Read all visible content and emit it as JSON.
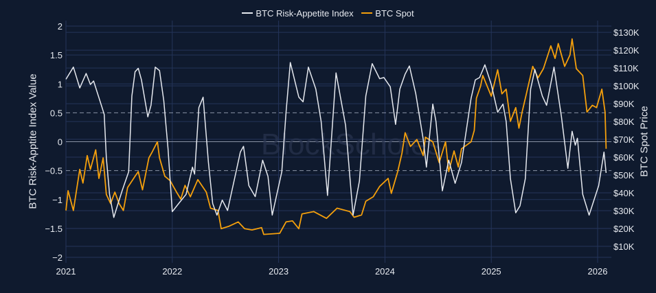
{
  "colors": {
    "background": "#0f1a2e",
    "grid": "#24345a",
    "index": "#e6e9ef",
    "spot": "#f5a00c",
    "zero": "#8a93a6",
    "watermark": "#2a3550"
  },
  "chart_data": {
    "type": "line",
    "title": "",
    "watermark": "BlockScholes",
    "legend_position": "top-center",
    "xlabel": "",
    "ylabel": "BTC Risk-Apptite Index Value",
    "y2label": "BTC Spot Price",
    "xlim": [
      2021.0,
      2026.13
    ],
    "ylim": [
      -2,
      2
    ],
    "y2lim": [
      3.85,
      133.5
    ],
    "x_ticks": [
      2021,
      2022,
      2023,
      2024,
      2025,
      2026
    ],
    "x_tick_labels": [
      "2021",
      "2022",
      "2023",
      "2024",
      "2025",
      "2026"
    ],
    "y_ticks": [
      2,
      1.5,
      1,
      0.5,
      0,
      -0.5,
      -1,
      -1.5,
      -2
    ],
    "y_tick_labels": [
      "2",
      "1.5",
      "1",
      "0.5",
      "0",
      "−0.5",
      "−1",
      "−1.5",
      "−2"
    ],
    "y2_ticks": [
      130,
      120,
      110,
      100,
      90,
      80,
      70,
      60,
      50,
      40,
      30,
      20,
      10
    ],
    "y2_tick_labels": [
      "$130K",
      "$120K",
      "$110K",
      "$100K",
      "$90K",
      "$80K",
      "$70K",
      "$60K",
      "$50K",
      "$40K",
      "$30K",
      "$20K",
      "$10K"
    ],
    "dashed_reference_lines": [
      0.5,
      -0.5
    ],
    "series": [
      {
        "name": "BTC Risk-Appetite Index",
        "axis": "left",
        "x": [
          2021.0,
          2021.07,
          2021.13,
          2021.19,
          2021.23,
          2021.26,
          2021.34,
          2021.36,
          2021.38,
          2021.41,
          2021.45,
          2021.49,
          2021.53,
          2021.59,
          2021.62,
          2021.65,
          2021.68,
          2021.71,
          2021.77,
          2021.8,
          2021.84,
          2021.88,
          2021.92,
          2021.96,
          2022.0,
          2022.06,
          2022.13,
          2022.19,
          2022.21,
          2022.25,
          2022.29,
          2022.34,
          2022.38,
          2022.42,
          2022.47,
          2022.52,
          2022.6,
          2022.64,
          2022.67,
          2022.72,
          2022.78,
          2022.85,
          2022.9,
          2022.94,
          2023.03,
          2023.07,
          2023.11,
          2023.19,
          2023.23,
          2023.28,
          2023.35,
          2023.4,
          2023.46,
          2023.54,
          2023.63,
          2023.7,
          2023.76,
          2023.82,
          2023.88,
          2023.95,
          2023.99,
          2024.05,
          2024.1,
          2024.14,
          2024.19,
          2024.23,
          2024.29,
          2024.36,
          2024.39,
          2024.45,
          2024.48,
          2024.54,
          2024.6,
          2024.66,
          2024.72,
          2024.81,
          2024.85,
          2024.89,
          2024.94,
          2025.0,
          2025.06,
          2025.11,
          2025.14,
          2025.18,
          2025.23,
          2025.27,
          2025.32,
          2025.37,
          2025.41,
          2025.48,
          2025.52,
          2025.59,
          2025.66,
          2025.72,
          2025.76,
          2025.79,
          2025.81,
          2025.86,
          2025.92,
          2026.01,
          2026.06,
          2026.08
        ],
        "y": [
          1.08,
          1.29,
          0.93,
          1.18,
          0.99,
          1.05,
          0.59,
          0.47,
          -0.28,
          -0.91,
          -1.31,
          -1.07,
          -0.84,
          -0.52,
          0.79,
          1.21,
          1.27,
          1.07,
          0.43,
          0.63,
          1.29,
          1.23,
          0.71,
          -0.12,
          -1.21,
          -1.07,
          -0.91,
          -0.44,
          -0.56,
          0.59,
          0.77,
          -0.36,
          -1.07,
          -1.27,
          -1.01,
          -1.19,
          -0.52,
          -0.18,
          -0.08,
          -0.76,
          -0.95,
          -0.32,
          -0.6,
          -1.27,
          -0.52,
          0.51,
          1.37,
          0.77,
          0.69,
          1.29,
          0.91,
          0.35,
          -0.93,
          1.19,
          0.28,
          -1.27,
          -0.68,
          0.79,
          1.35,
          1.09,
          1.11,
          0.95,
          0.3,
          0.91,
          1.17,
          1.31,
          0.83,
          0.04,
          -0.44,
          0.65,
          0.35,
          -0.85,
          -0.32,
          -0.72,
          -0.36,
          0.75,
          1.07,
          1.11,
          1.33,
          0.99,
          0.51,
          0.65,
          0.35,
          -0.64,
          -1.23,
          -1.11,
          -0.64,
          0.91,
          1.25,
          0.79,
          0.63,
          1.29,
          0.43,
          -0.46,
          0.18,
          -0.06,
          0.06,
          -0.91,
          -1.27,
          -0.76,
          -0.18,
          -0.54
        ]
      },
      {
        "name": "BTC Spot",
        "axis": "right",
        "unit": "USD thousands",
        "x": [
          2021.0,
          2021.02,
          2021.07,
          2021.13,
          2021.16,
          2021.2,
          2021.23,
          2021.28,
          2021.31,
          2021.35,
          2021.38,
          2021.42,
          2021.46,
          2021.5,
          2021.54,
          2021.58,
          2021.65,
          2021.68,
          2021.72,
          2021.78,
          2021.81,
          2021.86,
          2021.88,
          2021.93,
          2021.98,
          2022.04,
          2022.08,
          2022.12,
          2022.17,
          2022.24,
          2022.32,
          2022.36,
          2022.43,
          2022.46,
          2022.53,
          2022.62,
          2022.68,
          2022.75,
          2022.84,
          2022.86,
          2023.01,
          2023.07,
          2023.13,
          2023.19,
          2023.22,
          2023.33,
          2023.45,
          2023.55,
          2023.67,
          2023.71,
          2023.78,
          2023.82,
          2023.89,
          2023.95,
          2024.03,
          2024.06,
          2024.12,
          2024.16,
          2024.19,
          2024.24,
          2024.3,
          2024.36,
          2024.38,
          2024.45,
          2024.51,
          2024.57,
          2024.6,
          2024.65,
          2024.69,
          2024.72,
          2024.81,
          2024.84,
          2024.86,
          2024.9,
          2024.92,
          2025.0,
          2025.06,
          2025.1,
          2025.14,
          2025.18,
          2025.23,
          2025.26,
          2025.29,
          2025.33,
          2025.39,
          2025.44,
          2025.49,
          2025.56,
          2025.6,
          2025.63,
          2025.69,
          2025.74,
          2025.76,
          2025.8,
          2025.86,
          2025.9,
          2025.95,
          2025.99,
          2026.04,
          2026.07,
          2026.08
        ],
        "y": [
          30.1,
          41.2,
          30.1,
          53.2,
          45.5,
          60.9,
          53.2,
          64.1,
          48.1,
          59.6,
          39.1,
          34,
          40.4,
          34,
          30.1,
          43,
          49.3,
          51.9,
          41.7,
          59.6,
          62.8,
          68.6,
          59.6,
          49.3,
          46.8,
          40.4,
          36.5,
          44.2,
          37.8,
          47.4,
          40.4,
          31.4,
          30.1,
          19.9,
          21.2,
          23.7,
          19.9,
          19.2,
          20.5,
          16.7,
          17.3,
          23.7,
          24.3,
          19.9,
          28.2,
          29.5,
          25.7,
          31.4,
          29.5,
          26.3,
          27.6,
          35.3,
          37.8,
          43.6,
          48.1,
          39.7,
          51.9,
          62.2,
          73.7,
          66,
          69.9,
          60.9,
          71.2,
          68.6,
          57,
          68.6,
          51.9,
          63.5,
          54.5,
          64.7,
          68.6,
          75,
          93,
          100,
          105.8,
          94.2,
          109,
          95.5,
          98.1,
          80.1,
          87.8,
          76.3,
          85.3,
          95.5,
          110.9,
          104.5,
          109.6,
          122.4,
          115.4,
          123.7,
          110.9,
          117.3,
          126.3,
          109.6,
          105.8,
          85.3,
          89.1,
          87.8,
          98.1,
          85.3,
          64.7
        ]
      }
    ]
  }
}
